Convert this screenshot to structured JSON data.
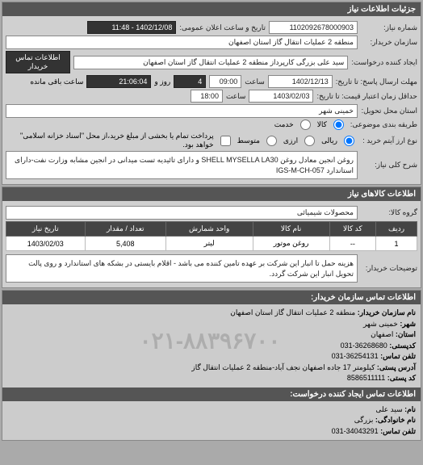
{
  "header": {
    "title": "جزئیات اطلاعات نیاز"
  },
  "req": {
    "number_label": "شماره نیاز:",
    "number": "1102092678000903",
    "datetime_label": "تاریخ و ساعت اعلان عمومی:",
    "datetime": "1402/12/08 - 11:48",
    "buyer_label": "سازمان خریدار:",
    "buyer": "منطقه 2 عملیات انتقال گاز استان اصفهان",
    "requester_label": "ایجاد کننده درخواست:",
    "requester": "سید علی بزرگی کارپرداز منطقه 2 عملیات انتقال گاز استان اصفهان",
    "contact_btn": "اطلاعات تماس خریدار",
    "deadline_label": "مهلت ارسال پاسخ: تا تاریخ:",
    "deadline_date": "1402/12/13",
    "deadline_time_label": "ساعت",
    "deadline_time": "09:00",
    "remain_days": "4",
    "remain_days_label": "روز و",
    "remain_time": "21:06:04",
    "remain_suffix": "ساعت باقی مانده",
    "validity_label": "حداقل زمان اعتبار قیمت: تا تاریخ:",
    "validity_date": "1403/02/03",
    "validity_time_label": "ساعت",
    "validity_time": "18:00",
    "delivery_state_label": "استان محل تحویل:",
    "delivery_state": "خمینی شهر",
    "delivery_method_label": "طریقه بندی موضوعی:",
    "radio_goods": "کالا",
    "radio_service": "خدمت",
    "currency_label": "نوع ارز آیتم خرید :",
    "radio_domestic": "ریالی",
    "radio_foreign": "ارزی",
    "radio_mid": "متوسط",
    "payment_note": "پرداخت تمام یا بخشی از مبلغ خرید،از محل \"اسناد خزانه اسلامی\" خواهد بود.",
    "desc_label": "شرح کلی نیاز:",
    "desc": "روغن انجین معادل روغن SHELL MYSELLA LA30 و دارای تائیدیه تست میدانی در انجین مشابه وزارت نفت-دارای استاندارد IGS-M-CH-057"
  },
  "goods": {
    "title": "اطلاعات کالاهای نیاز",
    "group_label": "گروه کالا:",
    "group": "محصولات شیمیائی",
    "columns": [
      "ردیف",
      "کد کالا",
      "نام کالا",
      "واحد شمارش",
      "تعداد / مقدار",
      "تاریخ نیاز"
    ],
    "rows": [
      [
        "1",
        "--",
        "روغن موتور",
        "لیتر",
        "5,408",
        "1403/02/03"
      ]
    ],
    "note_label": "توضیحات خریدار:",
    "note": "هزینه حمل تا انبار این شرکت بر عهده تامین کننده می باشد - اقلام بایستی در بشکه های استاندارد و روی پالت تحویل انبار این شرکت گردد."
  },
  "contact": {
    "title": "اطلاعات تماس سازمان خریدار:",
    "org_label": "نام سازمان خریدار:",
    "org": "منطقه 2 عملیات انتقال گاز استان اصفهان",
    "city_label": "شهر:",
    "city": "خمینی شهر",
    "province_label": "استان:",
    "province": "اصفهان",
    "postcode_label": "کدپستی:",
    "postcode": "36268680-031",
    "phone_label": "تلفن تماس:",
    "phone": "36254131-031",
    "address_label": "آدرس پستی:",
    "address": "کیلومتر 17 جاده اصفهان نجف آباد-منطقه 2 عملیات انتقال گاز",
    "postbox_label": "کد پستی:",
    "postbox": "8586511111",
    "req_title": "اطلاعات تماس ایجاد کننده درخواست:",
    "name_label": "نام:",
    "name": "سید علی",
    "family_label": "نام خانوادگی:",
    "family": "بزرگی",
    "req_phone_label": "تلفن تماس:",
    "req_phone": "34043291-031"
  },
  "watermark": "۰۲۱-۸۸۳۹۶۷۰۰"
}
